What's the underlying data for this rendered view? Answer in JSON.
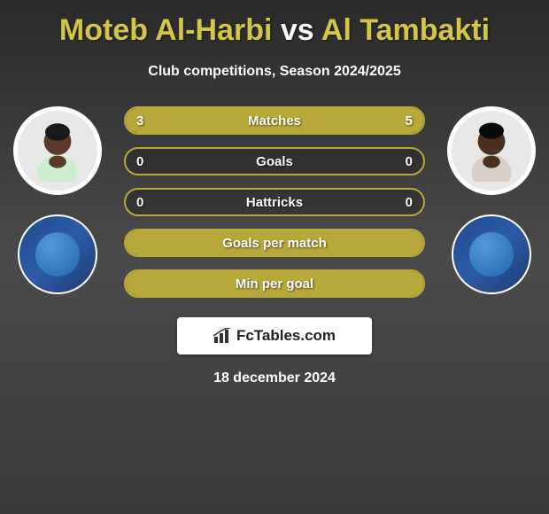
{
  "header": {
    "player1_name": "Moteb Al-Harbi",
    "vs_label": "vs",
    "player2_name": "Al Tambakti",
    "subtitle": "Club competitions, Season 2024/2025"
  },
  "colors": {
    "accent": "#b8a83a",
    "title": "#d4c547",
    "text": "#ffffff",
    "club_badge": "#1e4a8f"
  },
  "stats": [
    {
      "label": "Matches",
      "left_value": "3",
      "right_value": "5",
      "left_fill_pct": 37.5,
      "right_fill_pct": 62.5
    },
    {
      "label": "Goals",
      "left_value": "0",
      "right_value": "0",
      "left_fill_pct": 0,
      "right_fill_pct": 0
    },
    {
      "label": "Hattricks",
      "left_value": "0",
      "right_value": "0",
      "left_fill_pct": 0,
      "right_fill_pct": 0
    },
    {
      "label": "Goals per match",
      "left_value": "",
      "right_value": "",
      "left_fill_pct": 100,
      "right_fill_pct": 0,
      "full_fill": true
    },
    {
      "label": "Min per goal",
      "left_value": "",
      "right_value": "",
      "left_fill_pct": 100,
      "right_fill_pct": 0,
      "full_fill": true
    }
  ],
  "footer": {
    "brand": "FcTables.com",
    "date": "18 december 2024"
  },
  "player1_skin": "#5a3a28",
  "player2_skin": "#4a2e1e"
}
